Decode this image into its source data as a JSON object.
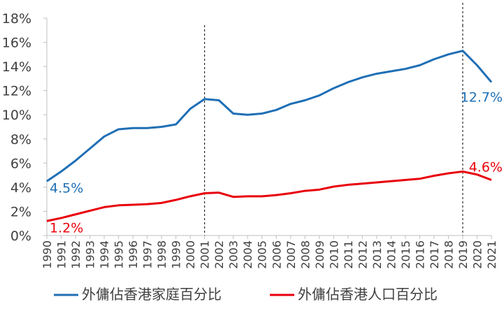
{
  "chart_data": {
    "type": "line",
    "x": [
      "1990",
      "1991",
      "1992",
      "1993",
      "1994",
      "1995",
      "1996",
      "1997",
      "1998",
      "1999",
      "2000",
      "2001",
      "2002",
      "2003",
      "2004",
      "2005",
      "2006",
      "2007",
      "2008",
      "2009",
      "2010",
      "2011",
      "2012",
      "2013",
      "2014",
      "2015",
      "2016",
      "2017",
      "2018",
      "2019",
      "2020",
      "2021"
    ],
    "series": [
      {
        "name": "外傭佔香港家庭百分比",
        "color": "#1f6fb5",
        "values": [
          4.5,
          5.3,
          6.2,
          7.2,
          8.2,
          8.8,
          8.9,
          8.9,
          9.0,
          9.2,
          10.5,
          11.3,
          11.2,
          10.1,
          10.0,
          10.1,
          10.4,
          10.9,
          11.2,
          11.6,
          12.2,
          12.7,
          13.1,
          13.4,
          13.6,
          13.8,
          14.1,
          14.6,
          15.0,
          15.3,
          14.1,
          12.7
        ]
      },
      {
        "name": "外傭佔香港人口百分比",
        "color": "#e8000b",
        "values": [
          1.2,
          1.45,
          1.75,
          2.05,
          2.35,
          2.5,
          2.55,
          2.6,
          2.7,
          2.95,
          3.25,
          3.5,
          3.55,
          3.2,
          3.25,
          3.25,
          3.35,
          3.5,
          3.7,
          3.8,
          4.05,
          4.2,
          4.3,
          4.4,
          4.5,
          4.6,
          4.7,
          4.95,
          5.15,
          5.3,
          5.05,
          4.6
        ]
      }
    ],
    "data_labels": [
      {
        "series": 0,
        "x": "1990",
        "text": "4.5%"
      },
      {
        "series": 1,
        "x": "1990",
        "text": "1.2%"
      },
      {
        "series": 0,
        "x": "2021",
        "text": "12.7%"
      },
      {
        "series": 1,
        "x": "2021",
        "text": "4.6%"
      }
    ],
    "y_ticks": [
      "0%",
      "2%",
      "4%",
      "6%",
      "8%",
      "10%",
      "12%",
      "14%",
      "16%",
      "18%"
    ],
    "ylim": [
      0,
      18
    ],
    "reference_lines": [
      "2001",
      "2019"
    ],
    "grid": false,
    "legend": "bottom"
  }
}
